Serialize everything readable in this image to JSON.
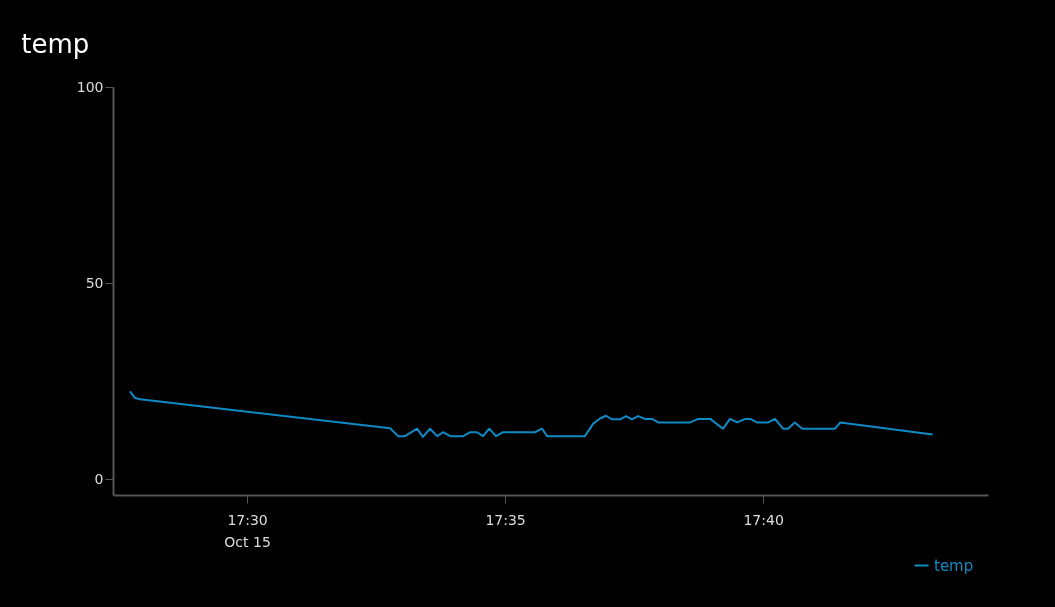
{
  "chart_data": {
    "type": "line",
    "title": "temp",
    "x": [
      17.4622,
      17.4638,
      17.4655,
      17.5462,
      17.5488,
      17.551,
      17.5549,
      17.5568,
      17.5591,
      17.5614,
      17.5633,
      17.5656,
      17.5698,
      17.5721,
      17.5743,
      17.5762,
      17.5782,
      17.5804,
      17.5827,
      17.593,
      17.5953,
      17.5969,
      17.6091,
      17.6118,
      17.614,
      17.6159,
      17.6179,
      17.6205,
      17.6224,
      17.6243,
      17.6263,
      17.6285,
      17.6308,
      17.6328,
      17.6431,
      17.6457,
      17.6496,
      17.6537,
      17.656,
      17.6583,
      17.6609,
      17.6625,
      17.6647,
      17.6683,
      17.6705,
      17.6731,
      17.6747,
      17.6769,
      17.6793,
      17.6899,
      17.6916,
      17.7214
    ],
    "series": [
      {
        "name": "temp",
        "color": "#0f8ac4",
        "values": [
          22.4,
          20.7,
          20.4,
          13.0,
          11.0,
          11.0,
          12.9,
          10.8,
          12.9,
          11.0,
          12.0,
          11.0,
          11.0,
          12.0,
          12.0,
          11.0,
          12.9,
          11.0,
          12.0,
          12.0,
          12.9,
          11.0,
          11.0,
          14.2,
          15.5,
          16.2,
          15.3,
          15.3,
          16.1,
          15.3,
          16.1,
          15.4,
          15.4,
          14.5,
          14.5,
          15.4,
          15.4,
          12.9,
          15.4,
          14.5,
          15.4,
          15.4,
          14.5,
          14.5,
          15.4,
          12.9,
          12.9,
          14.5,
          12.9,
          12.9,
          14.5,
          11.4
        ]
      }
    ],
    "xlim": [
      17.4567,
      17.7393
    ],
    "xticks": [
      {
        "value": 17.5,
        "label": "17:30\nOct 15"
      },
      {
        "value": 17.583333,
        "label": "17:35"
      },
      {
        "value": 17.666667,
        "label": "17:40"
      }
    ],
    "ylim": [
      -4,
      100
    ],
    "yticks": [
      0,
      50,
      100
    ],
    "grid": false,
    "legend": "bottom right",
    "marker": "none",
    "line_style": "solid"
  }
}
